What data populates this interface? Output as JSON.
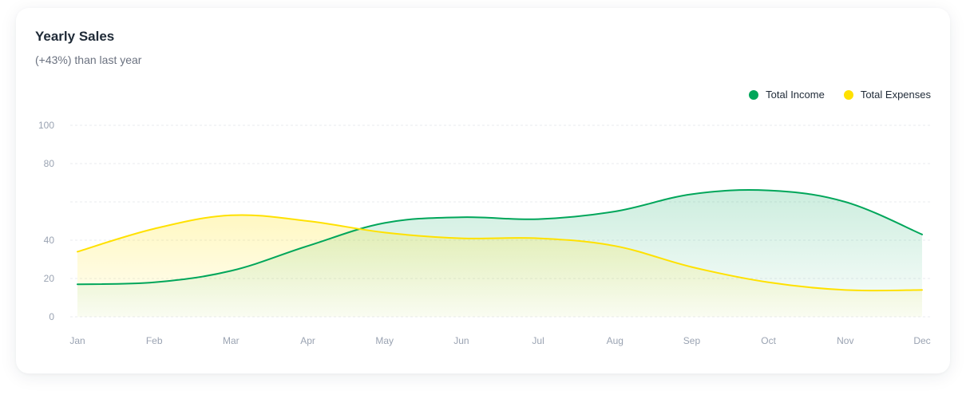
{
  "header": {
    "title": "Yearly Sales",
    "subtitle": "(+43%) than last year"
  },
  "chart_data": {
    "type": "area",
    "title": "Yearly Sales",
    "subtitle": "(+43%) than last year",
    "categories": [
      "Jan",
      "Feb",
      "Mar",
      "Apr",
      "May",
      "Jun",
      "Jul",
      "Aug",
      "Sep",
      "Oct",
      "Nov",
      "Dec"
    ],
    "ylim": [
      0,
      100
    ],
    "yticks": [
      0,
      20,
      40,
      80,
      100
    ],
    "grid": true,
    "legend_position": "top-right",
    "series": [
      {
        "name": "Total Income",
        "color": "#00a65a",
        "values": [
          17,
          18,
          24,
          37,
          49,
          52,
          51,
          55,
          64,
          66,
          60,
          43
        ]
      },
      {
        "name": "Total Expenses",
        "color": "#ffe100",
        "values": [
          34,
          46,
          53,
          50,
          44,
          41,
          41,
          37,
          26,
          18,
          14,
          14
        ]
      }
    ]
  }
}
